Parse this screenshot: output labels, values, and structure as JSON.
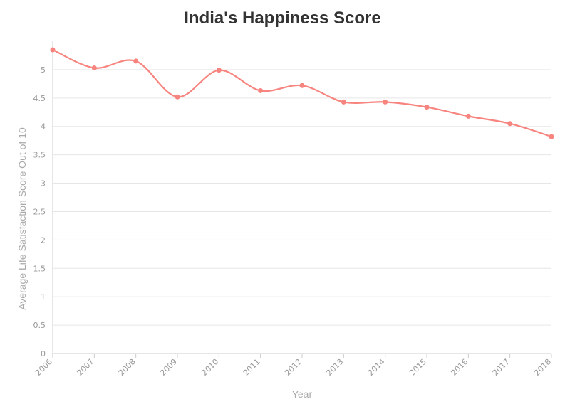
{
  "chart_data": {
    "type": "line",
    "title": "India's Happiness Score",
    "xlabel": "Year",
    "ylabel": "Average Life Satisfaction Score Out of 10",
    "categories": [
      "2006",
      "2007",
      "2008",
      "2009",
      "2010",
      "2011",
      "2012",
      "2013",
      "2014",
      "2015",
      "2016",
      "2017",
      "2018"
    ],
    "series": [
      {
        "values": [
          5.35,
          5.03,
          5.15,
          4.52,
          4.99,
          4.63,
          4.72,
          4.43,
          4.43,
          4.34,
          4.18,
          4.05,
          3.82
        ]
      }
    ],
    "ylim": [
      0,
      5.5
    ],
    "yticks": [
      "0",
      "0.5",
      "1",
      "1.5",
      "2",
      "2.5",
      "3",
      "3.5",
      "4",
      "4.5",
      "5"
    ],
    "grid": true,
    "legend": "none",
    "line_color": "#f7847e"
  }
}
